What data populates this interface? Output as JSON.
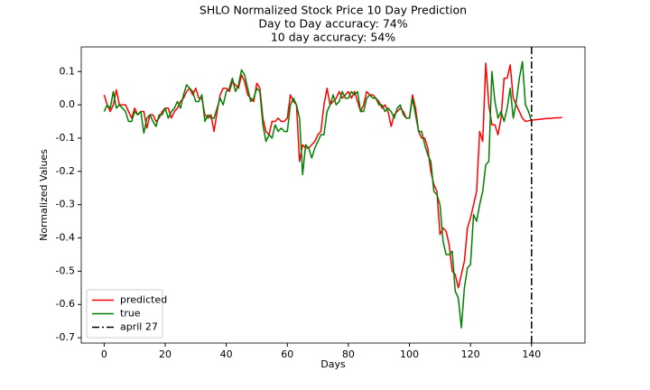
{
  "chart_data": {
    "type": "line",
    "title": "SHLO Normalized Stock Price 10 Day Prediction",
    "subtitle": [
      "Day to Day accuracy: 74%",
      "10 day accuracy: 54%"
    ],
    "xlabel": "Days",
    "ylabel": "Normalized Values",
    "x": [
      0,
      1,
      2,
      3,
      4,
      5,
      6,
      7,
      8,
      9,
      10,
      11,
      12,
      13,
      14,
      15,
      16,
      17,
      18,
      19,
      20,
      21,
      22,
      23,
      24,
      25,
      26,
      27,
      28,
      29,
      30,
      31,
      32,
      33,
      34,
      35,
      36,
      37,
      38,
      39,
      40,
      41,
      42,
      43,
      44,
      45,
      46,
      47,
      48,
      49,
      50,
      51,
      52,
      53,
      54,
      55,
      56,
      57,
      58,
      59,
      60,
      61,
      62,
      63,
      64,
      65,
      66,
      67,
      68,
      69,
      70,
      71,
      72,
      73,
      74,
      75,
      76,
      77,
      78,
      79,
      80,
      81,
      82,
      83,
      84,
      85,
      86,
      87,
      88,
      89,
      90,
      91,
      92,
      93,
      94,
      95,
      96,
      97,
      98,
      99,
      100,
      101,
      102,
      103,
      104,
      105,
      106,
      107,
      108,
      109,
      110,
      111,
      112,
      113,
      114,
      115,
      116,
      117,
      118,
      119,
      120,
      121,
      122,
      123,
      124,
      125,
      126,
      127,
      128,
      129,
      130,
      131,
      132,
      133,
      134,
      135,
      136,
      137,
      138,
      139,
      140,
      141,
      142,
      143,
      144,
      145,
      146,
      147,
      148,
      149,
      150
    ],
    "series": [
      {
        "name": "predicted",
        "color": "#ff0000",
        "values": [
          0.03,
          0.0,
          -0.02,
          0.0,
          0.045,
          0.0,
          0.0,
          0.0,
          -0.02,
          -0.04,
          -0.01,
          -0.03,
          -0.02,
          -0.02,
          -0.07,
          -0.03,
          -0.03,
          -0.05,
          -0.04,
          -0.02,
          -0.01,
          -0.01,
          -0.04,
          -0.02,
          -0.01,
          0.01,
          0.02,
          0.04,
          0.05,
          0.03,
          0.05,
          0.02,
          0.02,
          -0.03,
          -0.04,
          -0.03,
          -0.08,
          -0.02,
          0.03,
          0.05,
          0.05,
          0.04,
          0.07,
          0.06,
          0.05,
          0.09,
          0.07,
          0.03,
          0.02,
          0.01,
          0.065,
          0.05,
          -0.04,
          -0.08,
          -0.09,
          -0.05,
          -0.05,
          -0.04,
          -0.05,
          -0.05,
          -0.04,
          0.03,
          0.01,
          0.0,
          -0.17,
          -0.12,
          -0.13,
          -0.13,
          -0.12,
          -0.11,
          -0.09,
          -0.08,
          0.0,
          0.05,
          0.0,
          0.01,
          0.02,
          0.04,
          0.02,
          0.03,
          0.04,
          0.02,
          0.04,
          0.01,
          -0.02,
          0.0,
          0.04,
          0.03,
          0.03,
          0.02,
          0.01,
          -0.01,
          0.0,
          -0.02,
          -0.065,
          -0.03,
          -0.02,
          -0.01,
          -0.02,
          -0.04,
          -0.04,
          0.03,
          -0.01,
          -0.08,
          -0.1,
          -0.1,
          -0.13,
          -0.2,
          -0.24,
          -0.26,
          -0.39,
          -0.37,
          -0.38,
          -0.42,
          -0.5,
          -0.51,
          -0.55,
          -0.51,
          -0.47,
          -0.37,
          -0.34,
          -0.3,
          -0.26,
          -0.08,
          -0.11,
          0.125,
          0.0,
          -0.06,
          -0.06,
          -0.09,
          -0.04,
          0.08,
          0.08,
          0.12,
          0.02,
          0.0,
          -0.02,
          -0.04,
          -0.05,
          -0.048,
          -0.046,
          -0.045,
          -0.044,
          -0.043,
          -0.042,
          -0.041,
          -0.041,
          -0.04,
          -0.039,
          -0.039,
          -0.038
        ]
      },
      {
        "name": "true",
        "color": "#008000",
        "values": [
          -0.02,
          0.0,
          -0.01,
          0.04,
          -0.01,
          0.0,
          -0.01,
          -0.02,
          -0.05,
          -0.05,
          -0.02,
          -0.03,
          -0.02,
          -0.085,
          -0.04,
          -0.03,
          -0.05,
          -0.065,
          -0.03,
          -0.03,
          -0.01,
          -0.04,
          -0.02,
          -0.01,
          0.01,
          -0.01,
          0.03,
          0.06,
          0.05,
          0.04,
          0.01,
          0.01,
          0.03,
          -0.05,
          -0.03,
          -0.04,
          -0.04,
          -0.01,
          0.02,
          0.0,
          0.04,
          0.05,
          0.08,
          0.04,
          0.06,
          0.105,
          0.09,
          0.05,
          0.01,
          0.02,
          0.05,
          0.04,
          -0.06,
          -0.11,
          -0.09,
          -0.1,
          -0.06,
          -0.08,
          -0.07,
          -0.08,
          -0.08,
          0.0,
          0.02,
          0.0,
          -0.04,
          -0.21,
          -0.12,
          -0.13,
          -0.16,
          -0.13,
          -0.11,
          -0.09,
          -0.09,
          -0.02,
          0.0,
          0.03,
          0.0,
          0.01,
          0.04,
          0.02,
          0.02,
          0.04,
          0.03,
          0.04,
          -0.02,
          -0.02,
          0.02,
          0.03,
          0.02,
          0.02,
          0.0,
          0.0,
          -0.02,
          -0.01,
          -0.02,
          -0.04,
          -0.01,
          0.0,
          -0.03,
          -0.04,
          -0.04,
          0.02,
          -0.03,
          -0.08,
          -0.08,
          -0.12,
          -0.15,
          -0.17,
          -0.26,
          -0.27,
          -0.3,
          -0.41,
          -0.45,
          -0.45,
          -0.44,
          -0.56,
          -0.58,
          -0.67,
          -0.55,
          -0.49,
          -0.48,
          -0.33,
          -0.35,
          -0.3,
          -0.26,
          -0.18,
          -0.17,
          0.1,
          0.01,
          -0.04,
          -0.02,
          -0.05,
          -0.01,
          0.05,
          -0.04,
          0.01,
          0.08,
          0.13,
          0.0,
          -0.02,
          -0.05,
          null,
          null,
          null,
          null,
          null,
          null,
          null,
          null,
          null,
          null
        ]
      }
    ],
    "vlines": [
      {
        "name": "april 27",
        "x": 140,
        "color": "#000000"
      }
    ],
    "xlim": [
      -7.5,
      157.5
    ],
    "xticks": [
      0,
      20,
      40,
      60,
      80,
      100,
      120,
      140
    ],
    "ylim": [
      -0.716,
      0.174
    ],
    "yticks": [
      -0.7,
      -0.6,
      -0.5,
      -0.4,
      -0.3,
      -0.2,
      -0.1,
      {
        "value": 0.0,
        "label": "0.0"
      },
      0.1
    ],
    "legend": "lower left",
    "grid": false
  }
}
